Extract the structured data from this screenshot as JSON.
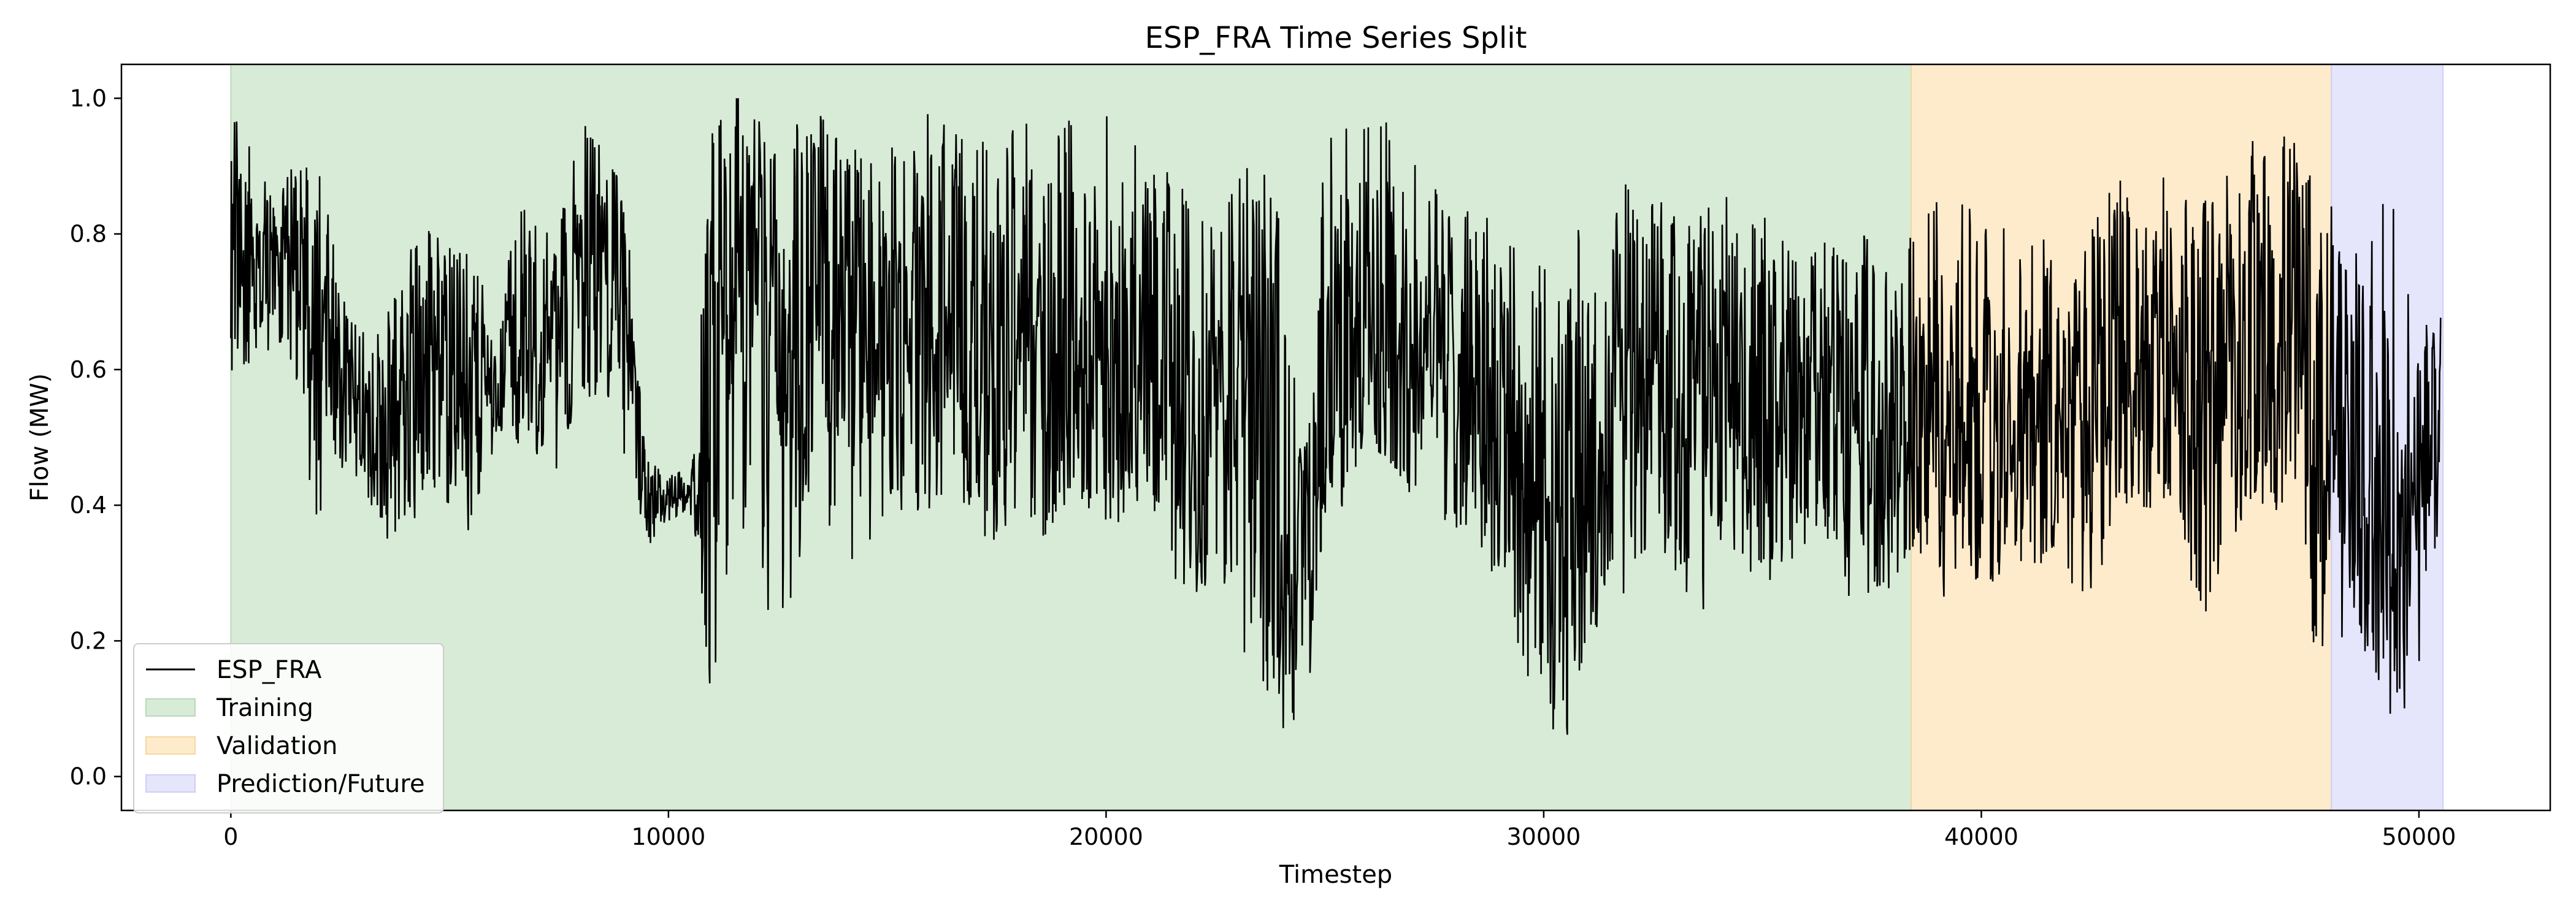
{
  "chart_data": {
    "type": "line",
    "title": "ESP_FRA Time Series Split",
    "xlabel": "Timestep",
    "ylabel": "Flow (MW)",
    "xlim": [
      -2500,
      53000
    ],
    "ylim": [
      -0.05,
      1.05
    ],
    "xticks": [
      0,
      10000,
      20000,
      30000,
      40000,
      50000
    ],
    "xtick_labels": [
      "0",
      "10000",
      "20000",
      "30000",
      "40000",
      "50000"
    ],
    "yticks": [
      0.0,
      0.2,
      0.4,
      0.6,
      0.8,
      1.0
    ],
    "ytick_labels": [
      "0.0",
      "0.2",
      "0.4",
      "0.6",
      "0.8",
      "1.0"
    ],
    "grid": false,
    "legend_position": "lower-left",
    "line_color": "#000000",
    "regions": [
      {
        "name": "Training",
        "x_start": 0,
        "x_end": 38400,
        "color": "#d7ebd7",
        "edge": "#b9d8b9"
      },
      {
        "name": "Validation",
        "x_start": 38400,
        "x_end": 48000,
        "color": "#fdebcc",
        "edge": "#f6d7a0"
      },
      {
        "name": "Prediction/Future",
        "x_start": 48000,
        "x_end": 50550,
        "color": "#e5e5fb",
        "edge": "#cfcff5"
      }
    ],
    "series": [
      {
        "name": "ESP_FRA",
        "x": [
          0,
          500,
          1000,
          1500,
          2000,
          2500,
          3000,
          3500,
          4000,
          4500,
          5000,
          5500,
          6000,
          6500,
          7000,
          7500,
          8000,
          8500,
          9000,
          9500,
          10000,
          10500,
          11000,
          11500,
          12000,
          12500,
          13000,
          13500,
          14000,
          14500,
          15000,
          15500,
          16000,
          16500,
          17000,
          17500,
          18000,
          18500,
          19000,
          19500,
          20000,
          20500,
          21000,
          21500,
          22000,
          22500,
          23000,
          23500,
          24000,
          24500,
          25000,
          25500,
          26000,
          26500,
          27000,
          27500,
          28000,
          28500,
          29000,
          29500,
          30000,
          30500,
          31000,
          31500,
          32000,
          32500,
          33000,
          33500,
          34000,
          34500,
          35000,
          35500,
          36000,
          36500,
          37000,
          37500,
          38000,
          38500,
          39000,
          39500,
          40000,
          40500,
          41000,
          41500,
          42000,
          42500,
          43000,
          43500,
          44000,
          44500,
          45000,
          45500,
          46000,
          46500,
          47000,
          47500,
          48000,
          48500,
          49000,
          49500,
          50000,
          50500
        ],
        "y": [
          0.72,
          0.75,
          0.73,
          0.76,
          0.68,
          0.58,
          0.55,
          0.52,
          0.56,
          0.6,
          0.63,
          0.57,
          0.58,
          0.64,
          0.62,
          0.63,
          0.72,
          0.76,
          0.7,
          0.4,
          0.41,
          0.42,
          0.55,
          0.85,
          0.7,
          0.72,
          0.68,
          0.74,
          0.67,
          0.65,
          0.66,
          0.64,
          0.67,
          0.7,
          0.63,
          0.6,
          0.65,
          0.62,
          0.66,
          0.64,
          0.62,
          0.63,
          0.66,
          0.62,
          0.58,
          0.56,
          0.57,
          0.55,
          0.4,
          0.25,
          0.58,
          0.64,
          0.66,
          0.67,
          0.64,
          0.63,
          0.61,
          0.59,
          0.55,
          0.45,
          0.4,
          0.38,
          0.5,
          0.56,
          0.55,
          0.6,
          0.57,
          0.55,
          0.58,
          0.56,
          0.57,
          0.55,
          0.58,
          0.56,
          0.54,
          0.55,
          0.5,
          0.52,
          0.5,
          0.55,
          0.53,
          0.54,
          0.57,
          0.55,
          0.52,
          0.56,
          0.6,
          0.62,
          0.63,
          0.58,
          0.57,
          0.6,
          0.65,
          0.66,
          0.62,
          0.6,
          0.55,
          0.5,
          0.42,
          0.3,
          0.43,
          0.6
        ],
        "envelope_low": [
          0.58,
          0.58,
          0.62,
          0.55,
          0.35,
          0.38,
          0.45,
          0.3,
          0.34,
          0.42,
          0.4,
          0.35,
          0.5,
          0.52,
          0.48,
          0.43,
          0.58,
          0.55,
          0.45,
          0.3,
          0.35,
          0.38,
          0.1,
          0.4,
          0.3,
          0.2,
          0.28,
          0.38,
          0.33,
          0.3,
          0.38,
          0.34,
          0.4,
          0.32,
          0.42,
          0.33,
          0.4,
          0.35,
          0.38,
          0.37,
          0.42,
          0.4,
          0.4,
          0.3,
          0.25,
          0.3,
          0.18,
          0.15,
          0.08,
          0.02,
          0.38,
          0.45,
          0.5,
          0.45,
          0.42,
          0.4,
          0.3,
          0.35,
          0.25,
          0.15,
          0.1,
          0.05,
          0.15,
          0.3,
          0.25,
          0.35,
          0.3,
          0.18,
          0.35,
          0.32,
          0.22,
          0.28,
          0.3,
          0.35,
          0.25,
          0.22,
          0.28,
          0.35,
          0.3,
          0.38,
          0.25,
          0.3,
          0.32,
          0.3,
          0.28,
          0.25,
          0.35,
          0.38,
          0.4,
          0.38,
          0.22,
          0.3,
          0.35,
          0.4,
          0.38,
          0.22,
          0.1,
          0.25,
          0.15,
          0.15,
          0.12,
          0.38
        ],
        "envelope_high": [
          1.0,
          0.93,
          0.88,
          0.9,
          0.85,
          0.72,
          0.68,
          0.65,
          0.8,
          0.82,
          0.78,
          0.78,
          0.72,
          0.88,
          0.82,
          0.84,
          1.0,
          0.95,
          0.85,
          0.45,
          0.44,
          0.45,
          1.0,
          0.98,
          0.97,
          0.95,
          0.96,
          0.95,
          0.92,
          0.9,
          0.95,
          0.92,
          1.0,
          0.95,
          0.97,
          0.95,
          0.98,
          0.96,
          0.98,
          0.97,
          1.0,
          0.96,
          0.93,
          0.9,
          0.88,
          0.85,
          0.92,
          0.94,
          0.82,
          0.45,
          0.95,
          0.98,
          1.0,
          0.97,
          0.92,
          0.88,
          0.86,
          0.85,
          0.83,
          0.8,
          0.78,
          0.82,
          0.86,
          0.9,
          0.88,
          0.85,
          0.85,
          0.82,
          0.86,
          0.88,
          0.8,
          0.82,
          0.78,
          0.8,
          0.76,
          0.82,
          0.78,
          0.82,
          0.88,
          0.9,
          0.84,
          0.82,
          0.85,
          0.8,
          0.72,
          0.8,
          0.9,
          0.88,
          0.92,
          0.9,
          0.84,
          0.88,
          0.94,
          0.95,
          0.96,
          0.9,
          0.8,
          0.76,
          0.85,
          0.88,
          0.6,
          0.65
        ]
      }
    ]
  }
}
